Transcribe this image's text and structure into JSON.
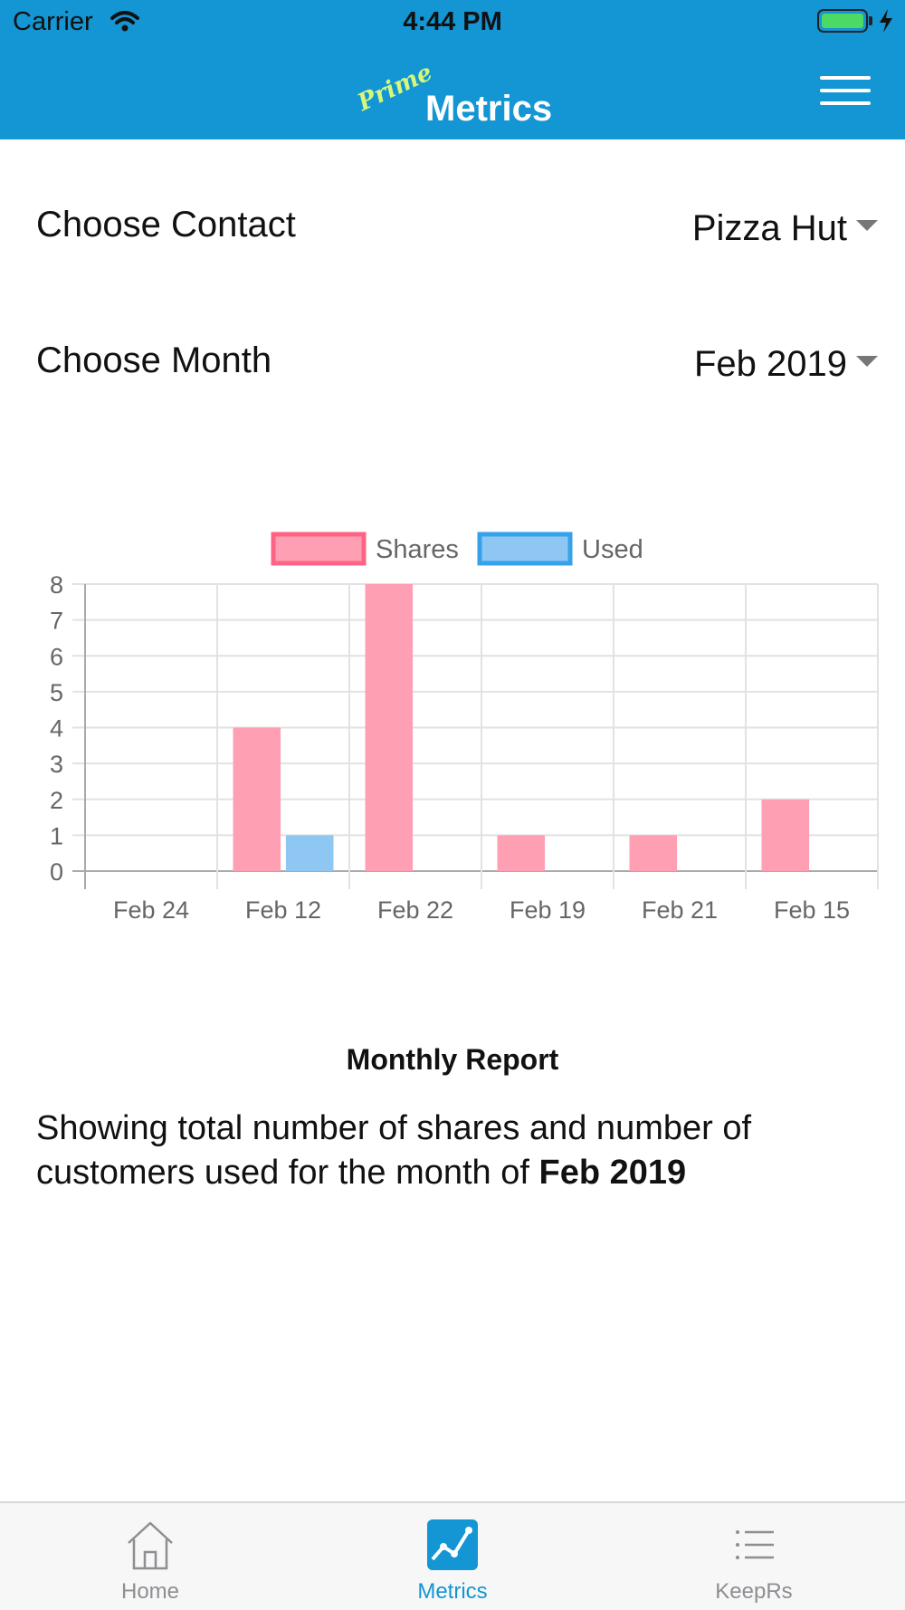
{
  "status_bar": {
    "carrier": "Carrier",
    "time": "4:44 PM"
  },
  "header": {
    "badge": "Prime",
    "title": "Metrics"
  },
  "filters": {
    "contact": {
      "label": "Choose Contact",
      "value": "Pizza Hut"
    },
    "month": {
      "label": "Choose Month",
      "value": "Feb 2019"
    }
  },
  "chart_data": {
    "type": "bar",
    "categories": [
      "Feb 24",
      "Feb 12",
      "Feb 22",
      "Feb 19",
      "Feb 21",
      "Feb 15"
    ],
    "series": [
      {
        "name": "Shares",
        "values": [
          0,
          4,
          8,
          1,
          1,
          2
        ],
        "color": "#ff9fb4",
        "border": "#ff6384"
      },
      {
        "name": "Used",
        "values": [
          0,
          1,
          0,
          0,
          0,
          0
        ],
        "color": "#8ec7f1",
        "border": "#36a2eb"
      }
    ],
    "ylim": [
      0,
      8
    ],
    "yticks": [
      0,
      1,
      2,
      3,
      4,
      5,
      6,
      7,
      8
    ],
    "legend": "top",
    "grid": true
  },
  "report": {
    "title": "Monthly Report",
    "text_prefix": "Showing total number of shares and number of customers used for the month of ",
    "text_month": "Feb 2019"
  },
  "tabs": [
    {
      "label": "Home",
      "icon": "home-icon",
      "active": false
    },
    {
      "label": "Metrics",
      "icon": "metrics-icon",
      "active": true
    },
    {
      "label": "KeepRs",
      "icon": "list-icon",
      "active": false
    }
  ],
  "colors": {
    "primary": "#1396d3",
    "accent": "#d8f77a"
  }
}
